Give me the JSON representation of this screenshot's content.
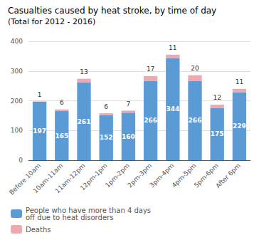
{
  "chart_data": {
    "type": "bar",
    "stacked": true,
    "data_labels": true,
    "grid": true,
    "legend": "lower left",
    "title": "Casualties caused by heat stroke, by time of day",
    "subtitle": "(Total for 2012 - 2016)",
    "categories": [
      "Before 10am",
      "10am-11am",
      "11am-12pm",
      "12pm-1pm",
      "1pm-2pm",
      "2pm-3pm",
      "3pm-4pm",
      "4pm-5pm",
      "5pm-6pm",
      "After 6pm"
    ],
    "series": [
      {
        "name": "People who have more than 4 days\noff due to heat disorders",
        "color": "#5b9bd5",
        "values": [
          197,
          165,
          261,
          152,
          160,
          266,
          344,
          266,
          175,
          229
        ]
      },
      {
        "name": "Deaths",
        "color": "#f0a8b0",
        "values": [
          1,
          6,
          13,
          6,
          7,
          17,
          11,
          20,
          12,
          11
        ]
      }
    ],
    "ylim": [
      0,
      400
    ],
    "yticks": [
      0,
      100,
      200,
      300,
      400
    ]
  }
}
